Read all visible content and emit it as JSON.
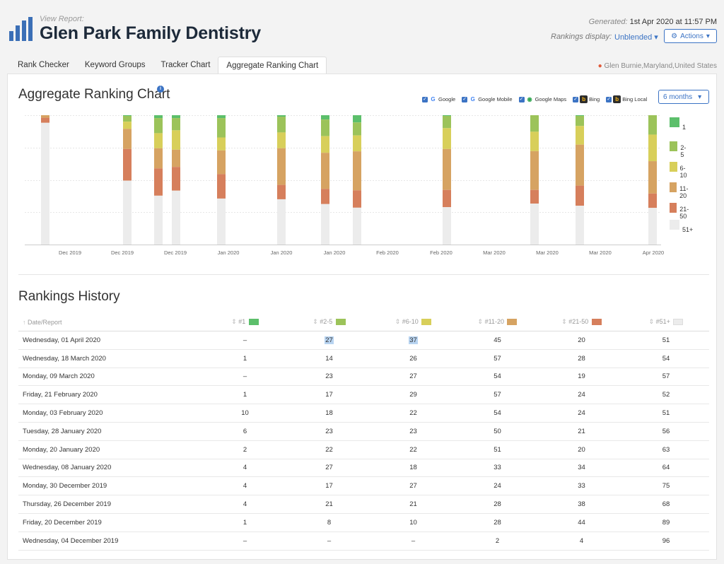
{
  "header": {
    "view_label": "View Report:",
    "title": "Glen Park Family Dentistry",
    "generated_label": "Generated:",
    "generated_value": "1st Apr 2020 at 11:57 PM",
    "rankings_display_label": "Rankings display:",
    "rankings_display_value": "Unblended",
    "actions_label": "Actions"
  },
  "tabs": [
    {
      "label": "Rank Checker"
    },
    {
      "label": "Keyword Groups"
    },
    {
      "label": "Tracker Chart"
    },
    {
      "label": "Aggregate Ranking Chart"
    }
  ],
  "location": "Glen Burnie,Maryland,United States",
  "chart_panel": {
    "title": "Aggregate Ranking Chart",
    "engines": [
      {
        "label": "Google",
        "icon": "google-icon"
      },
      {
        "label": "Google Mobile",
        "icon": "google-icon"
      },
      {
        "label": "Google Maps",
        "icon": "google-maps-icon"
      },
      {
        "label": "Bing",
        "icon": "bing-icon"
      },
      {
        "label": "Bing Local",
        "icon": "bing-icon"
      }
    ],
    "range_label": "6 months"
  },
  "colors": {
    "1": "#5cbf6b",
    "2-5": "#9cc35a",
    "6-10": "#d8cf5a",
    "11-20": "#d6a362",
    "21-50": "#d67f5c",
    "51+": "#ececec"
  },
  "chart_data": {
    "type": "bar",
    "stacked": true,
    "x_ticks": [
      "Dec 2019",
      "Dec 2019",
      "Dec 2019",
      "Jan 2020",
      "Jan 2020",
      "Jan 2020",
      "Feb 2020",
      "Feb 2020",
      "Mar 2020",
      "Mar 2020",
      "Mar 2020",
      "Apr 2020"
    ],
    "legend": [
      "1",
      "2-5",
      "6-10",
      "11-20",
      "21-50",
      "51+"
    ],
    "bars": [
      {
        "date": "Wednesday, 04 December 2019",
        "values": [
          0,
          0,
          0,
          2,
          4,
          96
        ]
      },
      {
        "date": "Friday, 20 December 2019",
        "values": [
          1,
          8,
          10,
          28,
          44,
          89
        ]
      },
      {
        "date": "Thursday, 26 December 2019",
        "values": [
          4,
          21,
          21,
          28,
          38,
          68
        ]
      },
      {
        "date": "Monday, 30 December 2019",
        "values": [
          4,
          17,
          27,
          24,
          33,
          75
        ]
      },
      {
        "date": "Wednesday, 08 January 2020",
        "values": [
          4,
          27,
          18,
          33,
          34,
          64
        ]
      },
      {
        "date": "Monday, 20 January 2020",
        "values": [
          2,
          22,
          22,
          51,
          20,
          63
        ]
      },
      {
        "date": "Tuesday, 28 January 2020",
        "values": [
          6,
          23,
          23,
          50,
          21,
          56
        ]
      },
      {
        "date": "Monday, 03 February 2020",
        "values": [
          10,
          18,
          22,
          54,
          24,
          51
        ]
      },
      {
        "date": "Friday, 21 February 2020",
        "values": [
          1,
          17,
          29,
          57,
          24,
          52
        ]
      },
      {
        "date": "Monday, 09 March 2020",
        "values": [
          0,
          23,
          27,
          54,
          19,
          57
        ]
      },
      {
        "date": "Wednesday, 18 March 2020",
        "values": [
          1,
          14,
          26,
          57,
          28,
          54
        ]
      },
      {
        "date": "Wednesday, 01 April 2020",
        "values": [
          0,
          27,
          37,
          45,
          20,
          51
        ]
      }
    ]
  },
  "history": {
    "title": "Rankings History",
    "columns": [
      "Date/Report",
      "#1",
      "#2-5",
      "#6-10",
      "#11-20",
      "#21-50",
      "#51+"
    ],
    "rows": [
      [
        "Wednesday, 01 April 2020",
        "–",
        "27",
        "37",
        "45",
        "20",
        "51"
      ],
      [
        "Wednesday, 18 March 2020",
        "1",
        "14",
        "26",
        "57",
        "28",
        "54"
      ],
      [
        "Monday, 09 March 2020",
        "–",
        "23",
        "27",
        "54",
        "19",
        "57"
      ],
      [
        "Friday, 21 February 2020",
        "1",
        "17",
        "29",
        "57",
        "24",
        "52"
      ],
      [
        "Monday, 03 February 2020",
        "10",
        "18",
        "22",
        "54",
        "24",
        "51"
      ],
      [
        "Tuesday, 28 January 2020",
        "6",
        "23",
        "23",
        "50",
        "21",
        "56"
      ],
      [
        "Monday, 20 January 2020",
        "2",
        "22",
        "22",
        "51",
        "20",
        "63"
      ],
      [
        "Wednesday, 08 January 2020",
        "4",
        "27",
        "18",
        "33",
        "34",
        "64"
      ],
      [
        "Monday, 30 December 2019",
        "4",
        "17",
        "27",
        "24",
        "33",
        "75"
      ],
      [
        "Thursday, 26 December 2019",
        "4",
        "21",
        "21",
        "28",
        "38",
        "68"
      ],
      [
        "Friday, 20 December 2019",
        "1",
        "8",
        "10",
        "28",
        "44",
        "89"
      ],
      [
        "Wednesday, 04 December 2019",
        "–",
        "–",
        "–",
        "2",
        "4",
        "96"
      ]
    ]
  }
}
